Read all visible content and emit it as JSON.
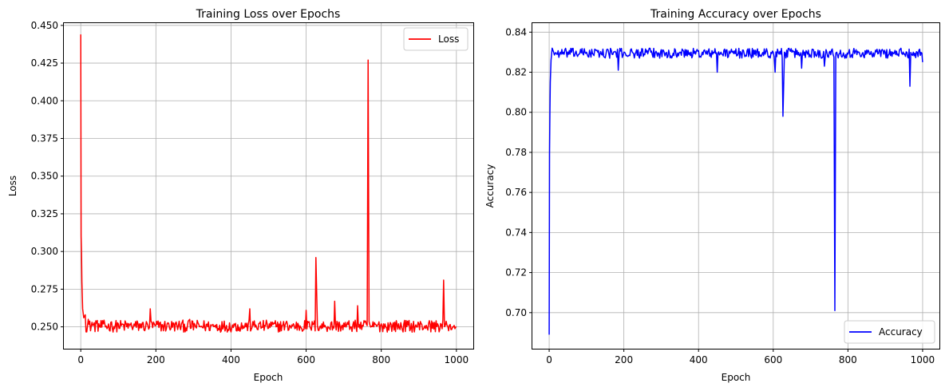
{
  "chart_data": [
    {
      "type": "line",
      "title": "Training Loss over Epochs",
      "xlabel": "Epoch",
      "ylabel": "Loss",
      "xlim": [
        -45,
        1045
      ],
      "ylim": [
        0.2355,
        0.4515
      ],
      "xticks": [
        0,
        200,
        400,
        600,
        800,
        1000
      ],
      "yticks": [
        0.25,
        0.275,
        0.3,
        0.325,
        0.35,
        0.375,
        0.4,
        0.425,
        0.45
      ],
      "ytick_labels": [
        "0.250",
        "0.275",
        "0.300",
        "0.325",
        "0.350",
        "0.375",
        "0.400",
        "0.425",
        "0.450"
      ],
      "grid": true,
      "legend": "top-right",
      "series": [
        {
          "name": "Loss",
          "color": "#ff0000",
          "baseline": 0.2505,
          "noise": 0.004,
          "x": [
            0,
            1,
            2,
            3,
            5,
            8,
            12,
            20,
            30,
            40,
            60,
            80,
            100,
            130,
            160,
            185,
            200,
            230,
            260,
            290,
            320,
            350,
            380,
            410,
            440,
            450,
            460,
            490,
            520,
            550,
            580,
            600,
            610,
            620,
            626,
            630,
            650,
            676,
            690,
            720,
            737,
            750,
            760,
            765,
            770,
            780,
            800,
            830,
            860,
            890,
            920,
            950,
            966,
            975,
            990,
            1000
          ],
          "y": [
            0.444,
            0.31,
            0.3,
            0.28,
            0.262,
            0.256,
            0.258,
            0.255,
            0.253,
            0.254,
            0.252,
            0.253,
            0.252,
            0.251,
            0.252,
            0.262,
            0.251,
            0.252,
            0.251,
            0.255,
            0.25,
            0.251,
            0.25,
            0.251,
            0.25,
            0.262,
            0.251,
            0.251,
            0.25,
            0.252,
            0.251,
            0.261,
            0.25,
            0.252,
            0.296,
            0.251,
            0.251,
            0.267,
            0.251,
            0.25,
            0.264,
            0.251,
            0.252,
            0.427,
            0.251,
            0.25,
            0.252,
            0.251,
            0.252,
            0.25,
            0.251,
            0.252,
            0.281,
            0.251,
            0.25,
            0.25
          ]
        }
      ]
    },
    {
      "type": "line",
      "title": "Training Accuracy over Epochs",
      "xlabel": "Epoch",
      "ylabel": "Accuracy",
      "xlim": [
        -45,
        1045
      ],
      "ylim": [
        0.682,
        0.8445
      ],
      "xticks": [
        0,
        200,
        400,
        600,
        800,
        1000
      ],
      "yticks": [
        0.7,
        0.72,
        0.74,
        0.76,
        0.78,
        0.8,
        0.82,
        0.84
      ],
      "ytick_labels": [
        "0.70",
        "0.72",
        "0.74",
        "0.76",
        "0.78",
        "0.80",
        "0.82",
        "0.84"
      ],
      "grid": true,
      "legend": "bottom-right",
      "series": [
        {
          "name": "Accuracy",
          "color": "#0000ff",
          "baseline": 0.8295,
          "noise": 0.0025,
          "x": [
            0,
            1,
            2,
            3,
            5,
            8,
            12,
            20,
            30,
            40,
            60,
            80,
            100,
            130,
            160,
            185,
            200,
            230,
            260,
            290,
            320,
            350,
            380,
            410,
            440,
            450,
            460,
            490,
            520,
            550,
            580,
            600,
            605,
            620,
            626,
            630,
            650,
            676,
            690,
            720,
            737,
            750,
            760,
            765,
            770,
            780,
            800,
            830,
            860,
            890,
            920,
            950,
            966,
            975,
            990,
            1000
          ],
          "y": [
            0.689,
            0.78,
            0.8,
            0.815,
            0.826,
            0.832,
            0.83,
            0.829,
            0.83,
            0.829,
            0.83,
            0.829,
            0.83,
            0.83,
            0.829,
            0.821,
            0.83,
            0.829,
            0.83,
            0.828,
            0.831,
            0.83,
            0.83,
            0.83,
            0.83,
            0.82,
            0.83,
            0.83,
            0.831,
            0.829,
            0.83,
            0.83,
            0.82,
            0.829,
            0.798,
            0.83,
            0.83,
            0.822,
            0.83,
            0.831,
            0.823,
            0.83,
            0.829,
            0.701,
            0.83,
            0.831,
            0.829,
            0.83,
            0.829,
            0.831,
            0.83,
            0.829,
            0.813,
            0.83,
            0.831,
            0.825
          ]
        }
      ]
    }
  ]
}
